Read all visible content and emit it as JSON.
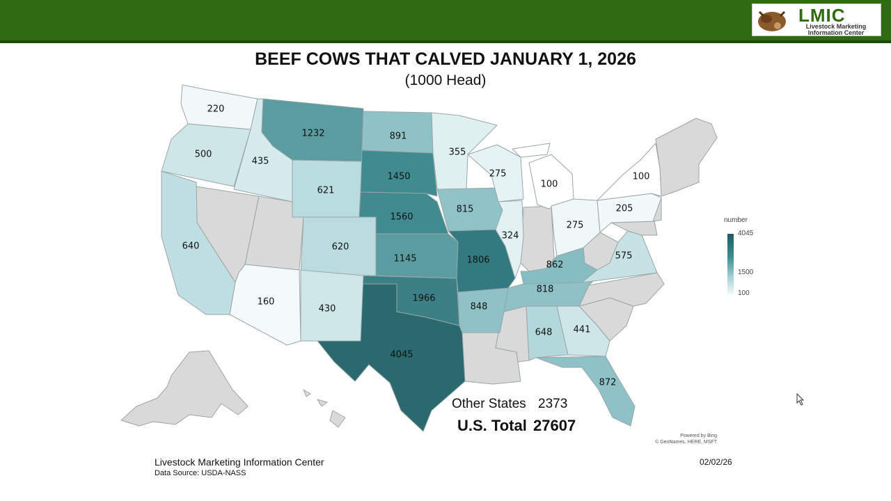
{
  "header": {
    "logo_title": "LMIC",
    "logo_subtitle_line1": "Livestock Marketing",
    "logo_subtitle_line2": "Information Center"
  },
  "title": "BEEF COWS THAT CALVED JANUARY 1, 2026",
  "subtitle": "(1000 Head)",
  "legend": {
    "title": "number",
    "max": "4045",
    "mid": "1500",
    "min": "100"
  },
  "colors": {
    "header_green": "#2f6b10",
    "scale_high": "#1f5b60",
    "scale_mid": "#3d8e92",
    "scale_low": "#f6fafb",
    "no_data": "#d9d9d9"
  },
  "states": [
    {
      "id": "WA",
      "label": "220",
      "value": 220
    },
    {
      "id": "OR",
      "label": "500",
      "value": 500
    },
    {
      "id": "CA",
      "label": "640",
      "value": 640
    },
    {
      "id": "ID",
      "label": "435",
      "value": 435
    },
    {
      "id": "MT",
      "label": "1232",
      "value": 1232
    },
    {
      "id": "WY",
      "label": "621",
      "value": 621
    },
    {
      "id": "ND",
      "label": "891",
      "value": 891
    },
    {
      "id": "SD",
      "label": "1450",
      "value": 1450
    },
    {
      "id": "NE",
      "label": "1560",
      "value": 1560
    },
    {
      "id": "CO",
      "label": "620",
      "value": 620
    },
    {
      "id": "KS",
      "label": "1145",
      "value": 1145
    },
    {
      "id": "OK",
      "label": "1966",
      "value": 1966
    },
    {
      "id": "TX",
      "label": "4045",
      "value": 4045
    },
    {
      "id": "NM",
      "label": "430",
      "value": 430
    },
    {
      "id": "AZ",
      "label": "160",
      "value": 160
    },
    {
      "id": "MN",
      "label": "355",
      "value": 355
    },
    {
      "id": "IA",
      "label": "815",
      "value": 815
    },
    {
      "id": "MO",
      "label": "1806",
      "value": 1806
    },
    {
      "id": "AR",
      "label": "848",
      "value": 848
    },
    {
      "id": "WI",
      "label": "275",
      "value": 275
    },
    {
      "id": "IL",
      "label": "324",
      "value": 324
    },
    {
      "id": "MI",
      "label": "100",
      "value": 100
    },
    {
      "id": "OH",
      "label": "275",
      "value": 275
    },
    {
      "id": "KY",
      "label": "862",
      "value": 862
    },
    {
      "id": "TN",
      "label": "818",
      "value": 818
    },
    {
      "id": "AL",
      "label": "648",
      "value": 648
    },
    {
      "id": "GA",
      "label": "441",
      "value": 441
    },
    {
      "id": "FL",
      "label": "872",
      "value": 872
    },
    {
      "id": "VA",
      "label": "575",
      "value": 575
    },
    {
      "id": "PA",
      "label": "205",
      "value": 205
    },
    {
      "id": "NY",
      "label": "100",
      "value": 100
    }
  ],
  "summary": {
    "other_label": "Other States",
    "other_value": "2373",
    "total_label": "U.S. Total",
    "total_value": "27607"
  },
  "attribution_line1": "Powered by Bing",
  "attribution_line2": "© GeoNames, HERE, MSFT",
  "footer": {
    "org": "Livestock Marketing Information Center",
    "source": "Data Source: USDA-NASS",
    "date": "02/02/26"
  }
}
